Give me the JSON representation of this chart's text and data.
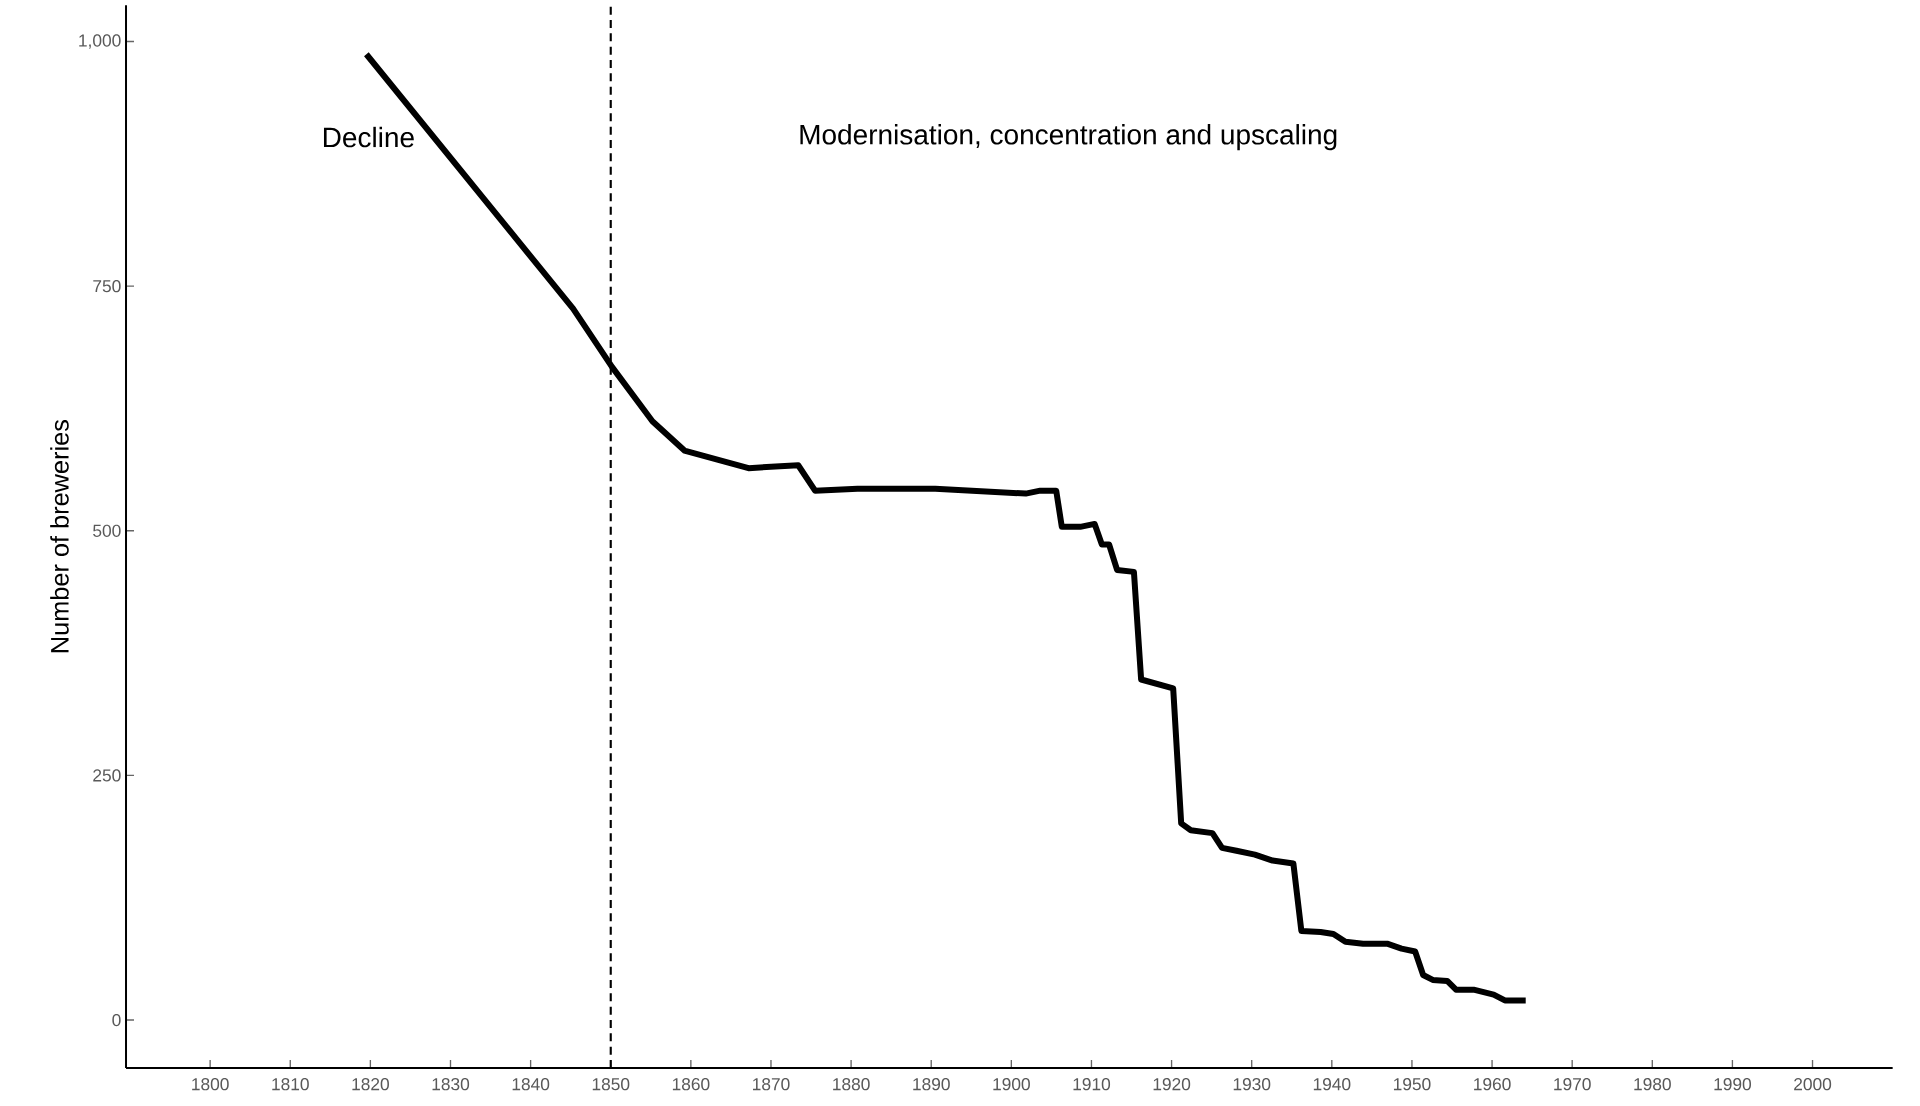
{
  "chart_data": {
    "type": "line",
    "ylabel": "Number of breweries",
    "x": [
      1819.5,
      1845.3,
      1850.2,
      1855.2,
      1859.2,
      1867.2,
      1873.4,
      1875.5,
      1880.8,
      1890.5,
      1901.8,
      1903.6,
      1905.6,
      1906.3,
      1908.6,
      1910.4,
      1911.3,
      1912.2,
      1913.2,
      1915.3,
      1916.2,
      1920.2,
      1921.2,
      1922.4,
      1925.1,
      1926.3,
      1928.1,
      1930.4,
      1932.6,
      1935.2,
      1936.2,
      1938.6,
      1940.2,
      1941.7,
      1943.9,
      1946.9,
      1948.7,
      1950.4,
      1951.4,
      1952.6,
      1954.4,
      1955.5,
      1957.7,
      1960.2,
      1961.6,
      1964.2
    ],
    "values": [
      987,
      727,
      667,
      612,
      582,
      564,
      567,
      541,
      543,
      543,
      538,
      541,
      541,
      504,
      504,
      507,
      486,
      486,
      460,
      458,
      348,
      339,
      201,
      194,
      191,
      176,
      173,
      169,
      163,
      160,
      91,
      90,
      88,
      80,
      78,
      78,
      73,
      70,
      46,
      41,
      40,
      31,
      31,
      26,
      20,
      20
    ],
    "color": "#000000",
    "xlim": [
      1789.5,
      2010
    ],
    "ylim": [
      -49,
      1037
    ],
    "xticks": [
      1800,
      1810,
      1820,
      1830,
      1840,
      1850,
      1860,
      1870,
      1880,
      1890,
      1900,
      1910,
      1920,
      1930,
      1940,
      1950,
      1960,
      1970,
      1980,
      1990,
      2000
    ],
    "yticks": [
      0,
      250,
      500,
      750,
      {
        "value": 1000,
        "label": "1,000"
      }
    ],
    "grid": false,
    "marker": "none",
    "line_style": "solid",
    "ref_lines": [
      {
        "axis": "x",
        "value": 1850,
        "line_style": "dashed",
        "color": "#000000"
      }
    ],
    "annotations": [
      "Decline",
      "Modernisation, concentration and upscaling"
    ]
  }
}
